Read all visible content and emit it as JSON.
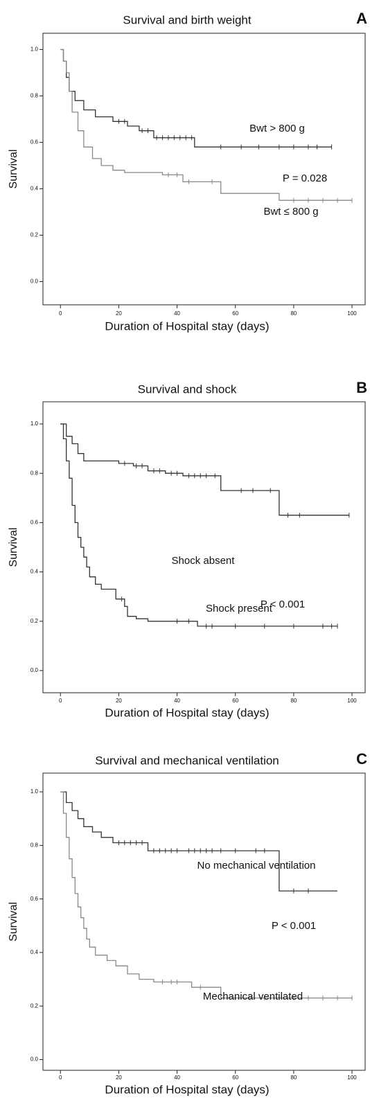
{
  "chart_data": [
    {
      "type": "step",
      "title": "Survival and birth weight",
      "panel_label": "A",
      "x_label": "Duration of Hospital stay (days)",
      "y_label": "Survival",
      "xlim": [
        -6,
        104.5
      ],
      "ylim": [
        -0.1,
        1.07
      ],
      "xticks": [
        0,
        20,
        40,
        60,
        80,
        100
      ],
      "yticks": [
        {
          "value": 0,
          "label": "0.0"
        },
        0.2,
        0.4,
        0.6,
        0.8,
        {
          "value": 1,
          "label": "1.0"
        }
      ],
      "annotations": [
        "Bwt > 800 g",
        "P = 0.028",
        "Bwt ≤ 800 g"
      ],
      "series": [
        {
          "name": "Bwt > 800 g",
          "color": "#333333",
          "x": [
            0,
            1,
            1,
            2,
            2,
            3,
            3,
            5,
            5,
            8,
            8,
            12,
            12,
            18,
            18,
            23,
            23,
            27,
            27,
            32,
            32,
            46,
            46,
            93
          ],
          "values": [
            1,
            1,
            0.95,
            0.95,
            0.88,
            0.88,
            0.82,
            0.82,
            0.78,
            0.78,
            0.74,
            0.74,
            0.71,
            0.71,
            0.69,
            0.69,
            0.67,
            0.67,
            0.65,
            0.65,
            0.62,
            0.62,
            0.58,
            0.58
          ],
          "censored_x": [
            20,
            22,
            28,
            30,
            33,
            35,
            37,
            39,
            41,
            43,
            45,
            55,
            62,
            68,
            75,
            80,
            85,
            88,
            93
          ],
          "censored_values": [
            0.69,
            0.69,
            0.65,
            0.65,
            0.62,
            0.62,
            0.62,
            0.62,
            0.62,
            0.62,
            0.62,
            0.58,
            0.58,
            0.58,
            0.58,
            0.58,
            0.58,
            0.58,
            0.58
          ]
        },
        {
          "name": "Bwt ≤ 800 g",
          "color": "#888888",
          "x": [
            0,
            1,
            1,
            2,
            2,
            3,
            3,
            4,
            4,
            6,
            6,
            8,
            8,
            11,
            11,
            14,
            14,
            18,
            18,
            22,
            22,
            35,
            35,
            42,
            42,
            55,
            55,
            75,
            75,
            100
          ],
          "values": [
            1,
            1,
            0.95,
            0.95,
            0.9,
            0.9,
            0.82,
            0.82,
            0.73,
            0.73,
            0.65,
            0.65,
            0.58,
            0.58,
            0.53,
            0.53,
            0.5,
            0.5,
            0.48,
            0.48,
            0.47,
            0.47,
            0.46,
            0.46,
            0.43,
            0.43,
            0.38,
            0.38,
            0.35,
            0.35
          ],
          "censored_x": [
            37,
            40,
            44,
            52,
            80,
            85,
            90,
            95,
            100
          ],
          "censored_values": [
            0.46,
            0.46,
            0.43,
            0.43,
            0.35,
            0.35,
            0.35,
            0.35,
            0.35
          ]
        }
      ]
    },
    {
      "type": "step",
      "title": "Survival and shock",
      "panel_label": "B",
      "x_label": "Duration of Hospital stay (days)",
      "y_label": "Survival",
      "xlim": [
        -6,
        104.5
      ],
      "ylim": [
        -0.09,
        1.09
      ],
      "xticks": [
        0,
        20,
        40,
        60,
        80,
        100
      ],
      "yticks": [
        {
          "value": 0,
          "label": "0.0"
        },
        0.2,
        0.4,
        0.6,
        0.8,
        {
          "value": 1,
          "label": "1.0"
        }
      ],
      "annotations": [
        "Shock absent",
        "P < 0.001",
        "Shock present"
      ],
      "series": [
        {
          "name": "Shock absent",
          "color": "#333333",
          "x": [
            0,
            2,
            2,
            4,
            4,
            6,
            6,
            8,
            8,
            20,
            20,
            25,
            25,
            30,
            30,
            36,
            36,
            42,
            42,
            55,
            55,
            75,
            75,
            99
          ],
          "values": [
            1,
            1,
            0.95,
            0.95,
            0.92,
            0.92,
            0.88,
            0.88,
            0.85,
            0.85,
            0.84,
            0.84,
            0.83,
            0.83,
            0.81,
            0.81,
            0.8,
            0.8,
            0.79,
            0.79,
            0.73,
            0.73,
            0.63,
            0.63
          ],
          "censored_x": [
            22,
            26,
            28,
            32,
            34,
            38,
            40,
            44,
            46,
            48,
            50,
            53,
            62,
            66,
            72,
            78,
            82,
            99
          ],
          "censored_values": [
            0.84,
            0.83,
            0.83,
            0.81,
            0.81,
            0.8,
            0.8,
            0.79,
            0.79,
            0.79,
            0.79,
            0.79,
            0.73,
            0.73,
            0.73,
            0.63,
            0.63,
            0.63
          ]
        },
        {
          "name": "Shock present",
          "color": "#333333",
          "x": [
            0,
            1,
            1,
            2,
            2,
            3,
            3,
            4,
            4,
            5,
            5,
            6,
            6,
            7,
            7,
            8,
            8,
            9,
            9,
            10,
            10,
            12,
            12,
            14,
            14,
            19,
            19,
            22,
            22,
            23,
            23,
            26,
            26,
            30,
            30,
            47,
            47,
            95
          ],
          "values": [
            1,
            1,
            0.94,
            0.94,
            0.85,
            0.85,
            0.78,
            0.78,
            0.67,
            0.67,
            0.6,
            0.6,
            0.54,
            0.54,
            0.5,
            0.5,
            0.46,
            0.46,
            0.42,
            0.42,
            0.38,
            0.38,
            0.35,
            0.35,
            0.33,
            0.33,
            0.29,
            0.29,
            0.26,
            0.26,
            0.22,
            0.22,
            0.21,
            0.21,
            0.2,
            0.2,
            0.18,
            0.18
          ],
          "censored_x": [
            21,
            40,
            44,
            50,
            52,
            60,
            70,
            80,
            90,
            93,
            95
          ],
          "censored_values": [
            0.29,
            0.2,
            0.2,
            0.18,
            0.18,
            0.18,
            0.18,
            0.18,
            0.18,
            0.18,
            0.18
          ]
        }
      ]
    },
    {
      "type": "step",
      "title": "Survival and mechanical ventilation",
      "panel_label": "C",
      "x_label": "Duration of Hospital stay (days)",
      "y_label": "Survival",
      "xlim": [
        -6,
        104.5
      ],
      "ylim": [
        -0.04,
        1.07
      ],
      "xticks": [
        0,
        20,
        40,
        60,
        80,
        100
      ],
      "yticks": [
        {
          "value": 0,
          "label": "0.0"
        },
        0.2,
        0.4,
        0.6,
        0.8,
        {
          "value": 1,
          "label": "1.0"
        }
      ],
      "annotations": [
        "No mechanical ventilation",
        "P < 0.001",
        "Mechanical ventilated"
      ],
      "series": [
        {
          "name": "No mechanical ventilation",
          "color": "#333333",
          "x": [
            0,
            2,
            2,
            4,
            4,
            6,
            6,
            8,
            8,
            11,
            11,
            14,
            14,
            18,
            18,
            30,
            30,
            75,
            75,
            95
          ],
          "values": [
            1,
            1,
            0.96,
            0.96,
            0.93,
            0.93,
            0.9,
            0.9,
            0.87,
            0.87,
            0.85,
            0.85,
            0.83,
            0.83,
            0.81,
            0.81,
            0.78,
            0.78,
            0.63,
            0.63
          ],
          "censored_x": [
            20,
            22,
            24,
            26,
            28,
            32,
            34,
            36,
            38,
            40,
            44,
            46,
            48,
            50,
            52,
            55,
            60,
            67,
            70,
            80,
            85
          ],
          "censored_values": [
            0.81,
            0.81,
            0.81,
            0.81,
            0.81,
            0.78,
            0.78,
            0.78,
            0.78,
            0.78,
            0.78,
            0.78,
            0.78,
            0.78,
            0.78,
            0.78,
            0.78,
            0.78,
            0.78,
            0.63,
            0.63
          ]
        },
        {
          "name": "Mechanical ventilated",
          "color": "#888888",
          "x": [
            0,
            1,
            1,
            2,
            2,
            3,
            3,
            4,
            4,
            5,
            5,
            6,
            6,
            7,
            7,
            8,
            8,
            9,
            9,
            10,
            10,
            12,
            12,
            16,
            16,
            19,
            19,
            23,
            23,
            27,
            27,
            32,
            32,
            45,
            45,
            55,
            55,
            100
          ],
          "values": [
            1,
            1,
            0.92,
            0.92,
            0.83,
            0.83,
            0.75,
            0.75,
            0.68,
            0.68,
            0.62,
            0.62,
            0.57,
            0.57,
            0.53,
            0.53,
            0.49,
            0.49,
            0.45,
            0.45,
            0.42,
            0.42,
            0.39,
            0.39,
            0.37,
            0.37,
            0.35,
            0.35,
            0.32,
            0.32,
            0.3,
            0.3,
            0.29,
            0.29,
            0.27,
            0.27,
            0.23,
            0.23
          ],
          "censored_x": [
            35,
            38,
            40,
            48,
            60,
            65,
            70,
            75,
            80,
            85,
            90,
            95,
            100
          ],
          "censored_values": [
            0.29,
            0.29,
            0.29,
            0.27,
            0.23,
            0.23,
            0.23,
            0.23,
            0.23,
            0.23,
            0.23,
            0.23,
            0.23
          ]
        }
      ]
    }
  ]
}
